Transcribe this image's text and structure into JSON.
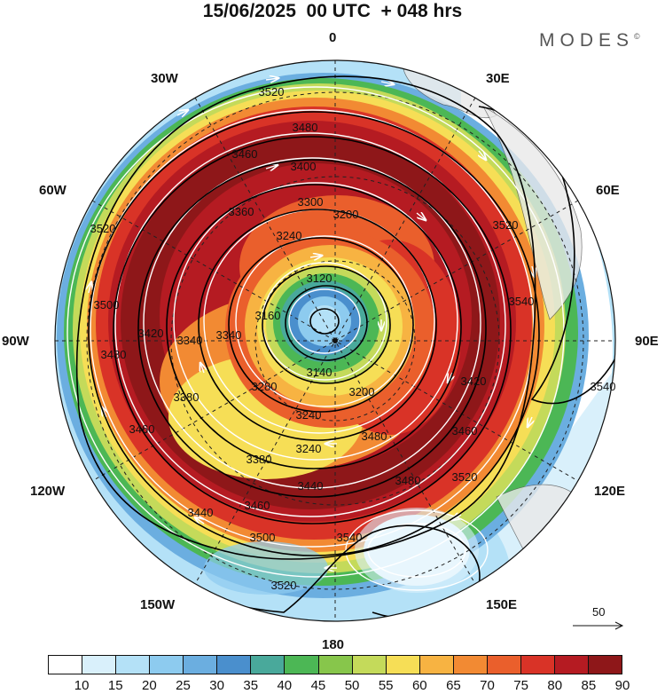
{
  "header": {
    "title": "15/06/2025  00 UTC  + 048 hrs",
    "brand": "MODES",
    "brand_mark": "©"
  },
  "map": {
    "projection": "polar stereographic, south pole centered",
    "longitude_labels": [
      "0",
      "30E",
      "60E",
      "90E",
      "120E",
      "150E",
      "180",
      "150W",
      "120W",
      "90W",
      "60W",
      "30W"
    ],
    "contour_labels": [
      "3520",
      "3480",
      "3460",
      "3400",
      "3360",
      "3300",
      "3200",
      "3240",
      "3120",
      "3160",
      "3140",
      "3200",
      "3240",
      "3280",
      "3340",
      "3340",
      "3380",
      "3420",
      "3480",
      "3500",
      "3520",
      "3460",
      "3440",
      "3480",
      "3420",
      "3460",
      "3240",
      "3380",
      "3440",
      "3460",
      "3480",
      "3500",
      "3520",
      "3540",
      "3540",
      "3520",
      "3540",
      "3520"
    ],
    "vector_reference": {
      "value": "50"
    },
    "colors": {
      "background": "#ffffff",
      "land": "#e9e9e9",
      "contour": "#000000",
      "streamline": "#ffffff"
    }
  },
  "colorbar": {
    "ticks": [
      "10",
      "15",
      "20",
      "25",
      "30",
      "35",
      "40",
      "45",
      "50",
      "55",
      "60",
      "65",
      "70",
      "75",
      "80",
      "85",
      "90"
    ],
    "colors": [
      "#ffffff",
      "#d9f0fb",
      "#b4e1f7",
      "#8dcbef",
      "#6baee0",
      "#4a8fcd",
      "#49a99b",
      "#4cb755",
      "#87c64b",
      "#c4da5a",
      "#f6de56",
      "#f7b342",
      "#f28a33",
      "#ea5f2c",
      "#d93327",
      "#b51b22",
      "#8e1719"
    ]
  }
}
